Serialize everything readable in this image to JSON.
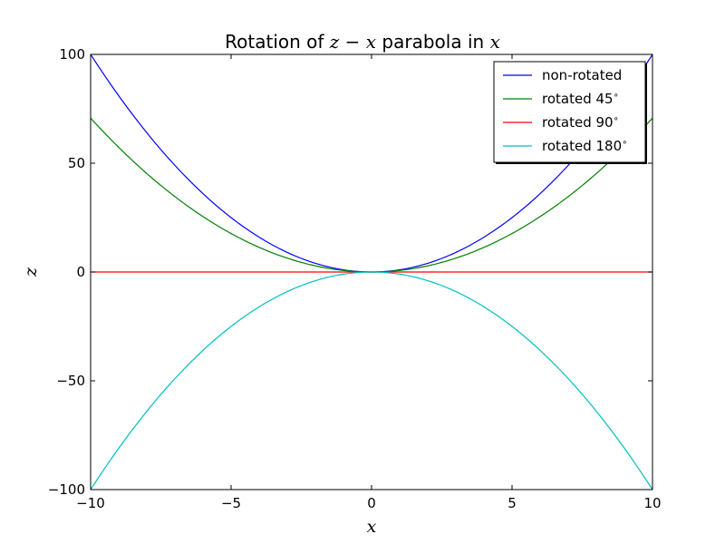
{
  "chart_data": {
    "type": "line",
    "title": {
      "prefix": "Rotation of ",
      "math1": "z − x",
      "middle": " parabola in ",
      "math2": "x"
    },
    "xlabel": "x",
    "ylabel": "z",
    "xlim": [
      -10,
      10
    ],
    "ylim": [
      -100,
      100
    ],
    "xticks": [
      {
        "value": -10,
        "label": "−10"
      },
      {
        "value": -5,
        "label": "−5"
      },
      {
        "value": 0,
        "label": "0"
      },
      {
        "value": 5,
        "label": "5"
      },
      {
        "value": 10,
        "label": "10"
      }
    ],
    "yticks": [
      {
        "value": -100,
        "label": "−100"
      },
      {
        "value": -50,
        "label": "−50"
      },
      {
        "value": 0,
        "label": "0"
      },
      {
        "value": 50,
        "label": "50"
      },
      {
        "value": 100,
        "label": "100"
      }
    ],
    "legend_position": "top-right",
    "grid": false,
    "series": [
      {
        "name": "non-rotated",
        "label": "non-rotated",
        "degree": "",
        "color": "#0000ff",
        "function": "z = x^2",
        "coefficient": 1.0
      },
      {
        "name": "rotated 45",
        "label": "rotated 45",
        "degree": "∘",
        "color": "#008000",
        "function": "z = 0.7071 x^2",
        "coefficient": 0.7071
      },
      {
        "name": "rotated 90",
        "label": "rotated 90",
        "degree": "∘",
        "color": "#ff0000",
        "function": "z = 0",
        "coefficient": 0.0
      },
      {
        "name": "rotated 180",
        "label": "rotated 180",
        "degree": "∘",
        "color": "#00bfbf",
        "function": "z = -x^2",
        "coefficient": -1.0
      }
    ]
  }
}
